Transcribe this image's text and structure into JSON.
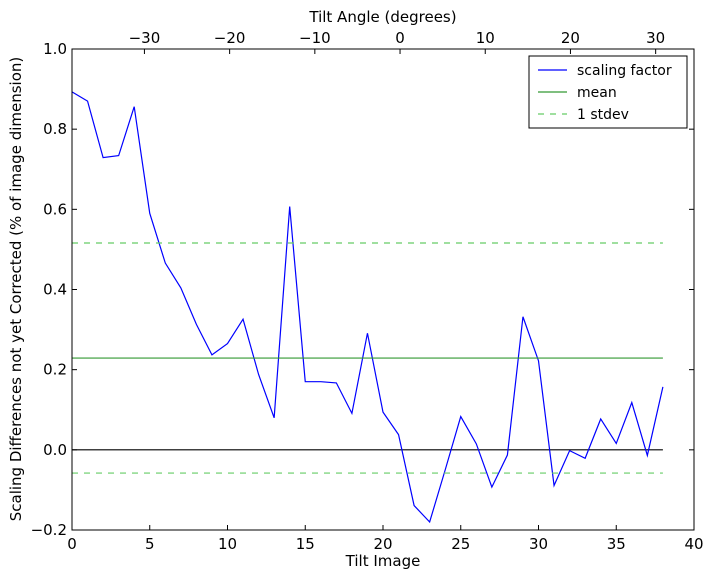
{
  "chart_data": {
    "type": "line",
    "xlabel": "Tilt Image",
    "ylabel": "Scaling Differences not yet Corrected (% of image dimension)",
    "top_xlabel": "Tilt Angle (degrees)",
    "xlim": [
      0,
      40
    ],
    "ylim": [
      -0.2,
      1.0
    ],
    "x_ticks": [
      0,
      5,
      10,
      15,
      20,
      25,
      30,
      35,
      40
    ],
    "x_tick_labels": [
      "0",
      "5",
      "10",
      "15",
      "20",
      "25",
      "30",
      "35",
      "40"
    ],
    "y_ticks": [
      -0.2,
      0.0,
      0.2,
      0.4,
      0.6,
      0.8,
      1.0
    ],
    "y_tick_labels": [
      "−0.2",
      "0.0",
      "0.2",
      "0.4",
      "0.6",
      "0.8",
      "1.0"
    ],
    "top_axis": {
      "range": [
        -38.5,
        34.5
      ],
      "ticks": [
        -30,
        -20,
        -10,
        0,
        10,
        20,
        30
      ],
      "tick_labels": [
        "−30",
        "−20",
        "−10",
        "0",
        "10",
        "20",
        "30"
      ]
    },
    "grid": false,
    "legend_position": "top-right",
    "zero_line": {
      "y": 0.0,
      "color": "#000000"
    },
    "series": [
      {
        "name": "scaling factor",
        "color": "#0000ff",
        "style": "solid",
        "x": [
          0,
          1,
          2,
          3,
          4,
          5,
          6,
          7,
          8,
          9,
          10,
          11,
          12,
          13,
          14,
          15,
          16,
          17,
          18,
          19,
          20,
          21,
          22,
          23,
          24,
          25,
          26,
          27,
          28,
          29,
          30,
          31,
          32,
          33,
          34,
          35,
          36,
          37,
          38
        ],
        "y": [
          0.893,
          0.87,
          0.729,
          0.734,
          0.856,
          0.59,
          0.466,
          0.404,
          0.313,
          0.237,
          0.265,
          0.326,
          0.188,
          0.08,
          0.607,
          0.17,
          0.17,
          0.167,
          0.091,
          0.291,
          0.094,
          0.038,
          -0.139,
          -0.18,
          -0.05,
          0.083,
          0.015,
          -0.093,
          -0.013,
          0.332,
          0.222,
          -0.089,
          -0.002,
          -0.021,
          0.077,
          0.016,
          0.118,
          -0.014,
          0.157
        ]
      },
      {
        "name": "mean",
        "color": "#339933",
        "style": "solid",
        "x": [
          0,
          38
        ],
        "y": [
          0.229,
          0.229
        ]
      },
      {
        "name": "1 stdev",
        "color": "#66cc66",
        "style": "dashed",
        "x": [
          0,
          38
        ],
        "y": [
          0.516,
          0.516
        ]
      },
      {
        "name": "",
        "color": "#66cc66",
        "style": "dashed",
        "x": [
          0,
          38
        ],
        "y": [
          -0.058,
          -0.058
        ]
      }
    ],
    "legend": [
      {
        "label": "scaling factor",
        "color": "#0000ff",
        "style": "solid"
      },
      {
        "label": "mean",
        "color": "#339933",
        "style": "solid"
      },
      {
        "label": "1 stdev",
        "color": "#66cc66",
        "style": "dashed"
      }
    ]
  }
}
